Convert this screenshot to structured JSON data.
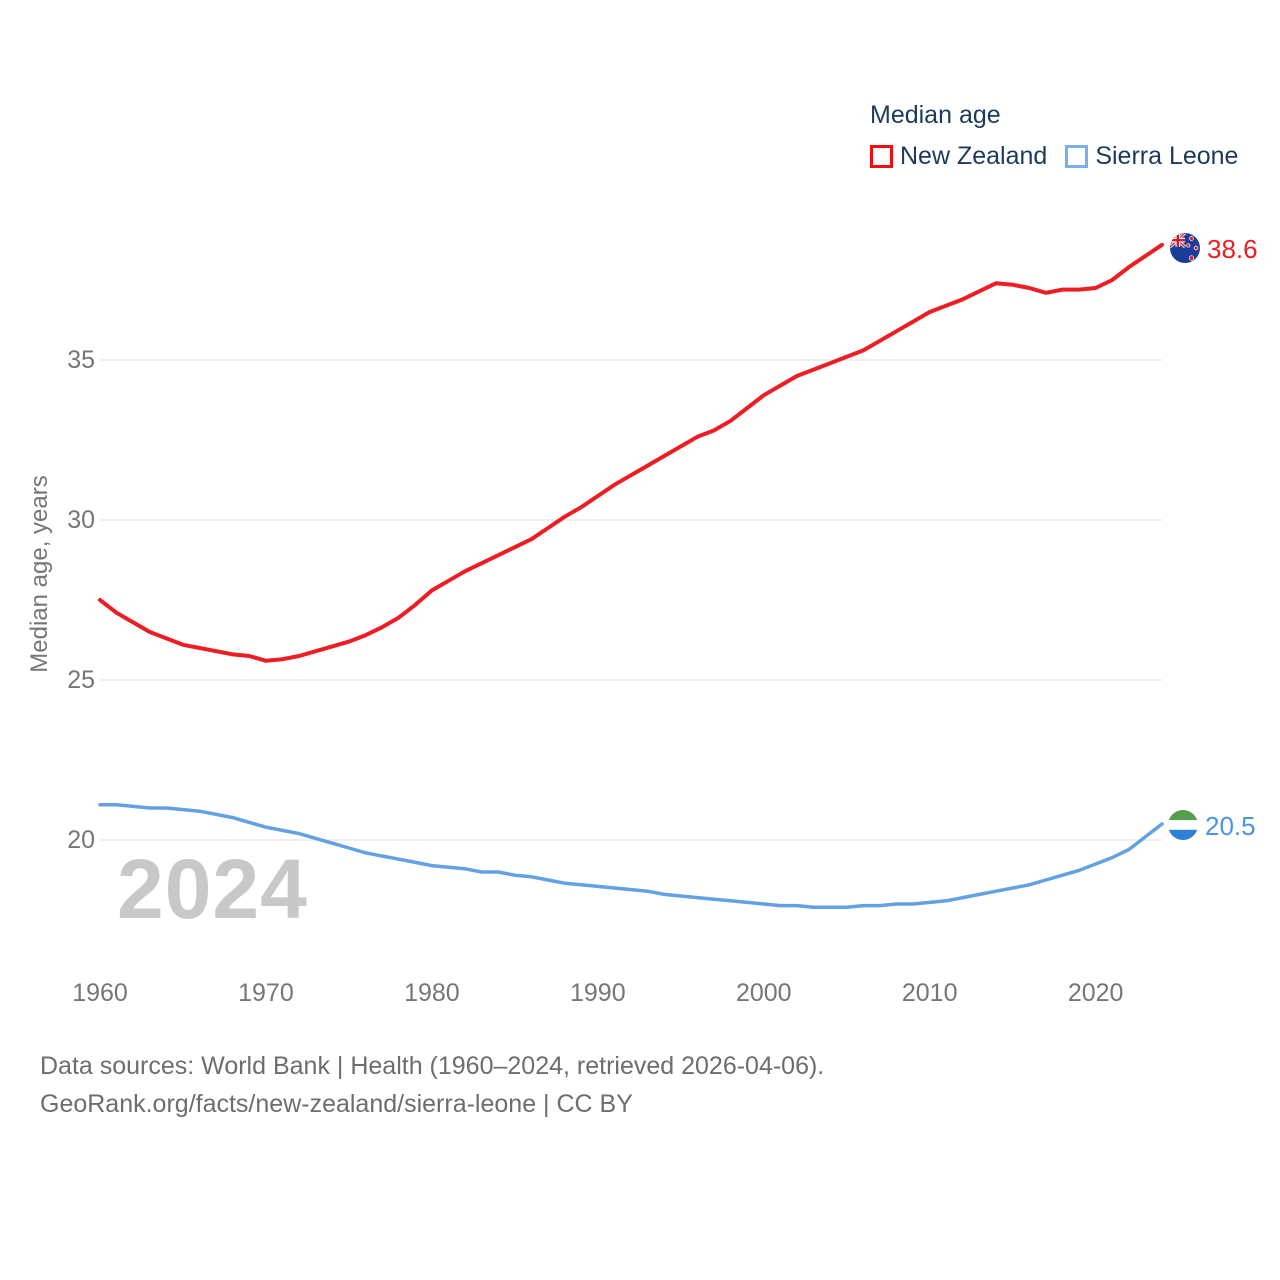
{
  "chart_data": {
    "type": "line",
    "title": "Median age",
    "ylabel": "Median age, years",
    "watermark": "2024",
    "x_range": [
      1960,
      2024
    ],
    "xticks": [
      1960,
      1970,
      1980,
      1990,
      2000,
      2010,
      2020
    ],
    "yticks": [
      20,
      25,
      30,
      35
    ],
    "ylim": [
      17.4,
      40.4
    ],
    "grid": "horizontal-only",
    "legend_position": "top-right",
    "x": [
      1960,
      1961,
      1962,
      1963,
      1964,
      1965,
      1966,
      1967,
      1968,
      1969,
      1970,
      1971,
      1972,
      1973,
      1974,
      1975,
      1976,
      1977,
      1978,
      1979,
      1980,
      1981,
      1982,
      1983,
      1984,
      1985,
      1986,
      1987,
      1988,
      1989,
      1990,
      1991,
      1992,
      1993,
      1994,
      1995,
      1996,
      1997,
      1998,
      1999,
      2000,
      2001,
      2002,
      2003,
      2004,
      2005,
      2006,
      2007,
      2008,
      2009,
      2010,
      2011,
      2012,
      2013,
      2014,
      2015,
      2016,
      2017,
      2018,
      2019,
      2020,
      2021,
      2022,
      2023,
      2024
    ],
    "series": [
      {
        "name": "New Zealand",
        "color": "#ee1c23",
        "legend_box_color": "#f40b10",
        "label_color": "#ee1c23",
        "end_label": "38.6",
        "icon": "new-zealand-flag",
        "values": [
          27.5,
          27.1,
          26.8,
          26.5,
          26.3,
          26.1,
          26.0,
          25.9,
          25.8,
          25.75,
          25.6,
          25.65,
          25.75,
          25.9,
          26.05,
          26.2,
          26.4,
          26.65,
          26.95,
          27.35,
          27.8,
          28.1,
          28.4,
          28.65,
          28.9,
          29.15,
          29.4,
          29.75,
          30.1,
          30.4,
          30.75,
          31.1,
          31.4,
          31.7,
          32.0,
          32.3,
          32.6,
          32.8,
          33.1,
          33.5,
          33.9,
          34.2,
          34.5,
          34.7,
          34.9,
          35.1,
          35.3,
          35.6,
          35.9,
          36.2,
          36.5,
          36.7,
          36.9,
          37.15,
          37.4,
          37.35,
          37.25,
          37.1,
          37.2,
          37.2,
          37.25,
          37.5,
          37.9,
          38.25,
          38.6
        ]
      },
      {
        "name": "Sierra Leone",
        "color": "#64a0e4",
        "legend_box_color": "#78b1ea",
        "label_color": "#4a94e4",
        "end_label": "20.5",
        "icon": "sierra-leone-flag",
        "values": [
          21.1,
          21.1,
          21.05,
          21.0,
          21.0,
          20.95,
          20.9,
          20.8,
          20.7,
          20.55,
          20.4,
          20.3,
          20.2,
          20.05,
          19.9,
          19.75,
          19.6,
          19.5,
          19.4,
          19.3,
          19.2,
          19.15,
          19.1,
          19.0,
          19.0,
          18.9,
          18.85,
          18.75,
          18.65,
          18.6,
          18.55,
          18.5,
          18.45,
          18.4,
          18.3,
          18.25,
          18.2,
          18.15,
          18.1,
          18.05,
          18.0,
          17.95,
          17.95,
          17.9,
          17.9,
          17.9,
          17.95,
          17.95,
          18.0,
          18.0,
          18.05,
          18.1,
          18.2,
          18.3,
          18.4,
          18.5,
          18.6,
          18.75,
          18.9,
          19.05,
          19.25,
          19.45,
          19.7,
          20.1,
          20.5
        ]
      }
    ]
  },
  "footer": {
    "line1": "Data sources: World Bank | Health (1960–2024, retrieved 2026-04-06).",
    "line2": "GeoRank.org/facts/new-zealand/sierra-leone | CC BY"
  },
  "colors": {
    "grid": "#ececec",
    "axis_text": "#767676",
    "legend_text": "#1b3a5c",
    "watermark": "#c8c8c8",
    "footer_text": "#6d6d6d"
  }
}
